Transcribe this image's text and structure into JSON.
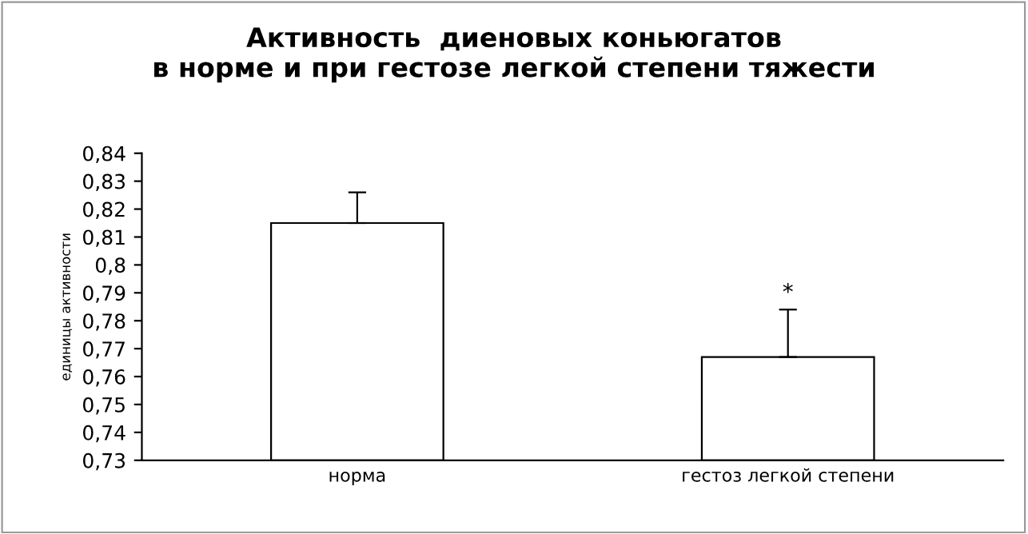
{
  "chart_data": {
    "type": "bar",
    "title": "Активность  диеновых коньюгатов\nв норме и при гестозе легкой степени тяжести",
    "ylabel": "единицы активности",
    "categories": [
      "норма",
      "гестоз легкой степени"
    ],
    "values": [
      0.815,
      0.767
    ],
    "errors": [
      [
        0.815,
        0.826
      ],
      [
        0.767,
        0.784
      ]
    ],
    "color": "#ffffff",
    "ylim": [
      0.73,
      0.84
    ],
    "yticks": [
      {
        "value": 0.73,
        "label": "0,73"
      },
      {
        "value": 0.74,
        "label": "0,74"
      },
      {
        "value": 0.75,
        "label": "0,75"
      },
      {
        "value": 0.76,
        "label": "0,76"
      },
      {
        "value": 0.77,
        "label": "0,77"
      },
      {
        "value": 0.78,
        "label": "0,78"
      },
      {
        "value": 0.79,
        "label": "0,79"
      },
      {
        "value": 0.8,
        "label": "0,8"
      },
      {
        "value": 0.81,
        "label": "0,81"
      },
      {
        "value": 0.82,
        "label": "0,82"
      },
      {
        "value": 0.83,
        "label": "0,83"
      },
      {
        "value": 0.84,
        "label": "0,84"
      }
    ],
    "annotations": [
      {
        "text": "*",
        "x": "гестоз легкой степени",
        "y": 0.786
      }
    ],
    "grid": false,
    "legend": false
  }
}
